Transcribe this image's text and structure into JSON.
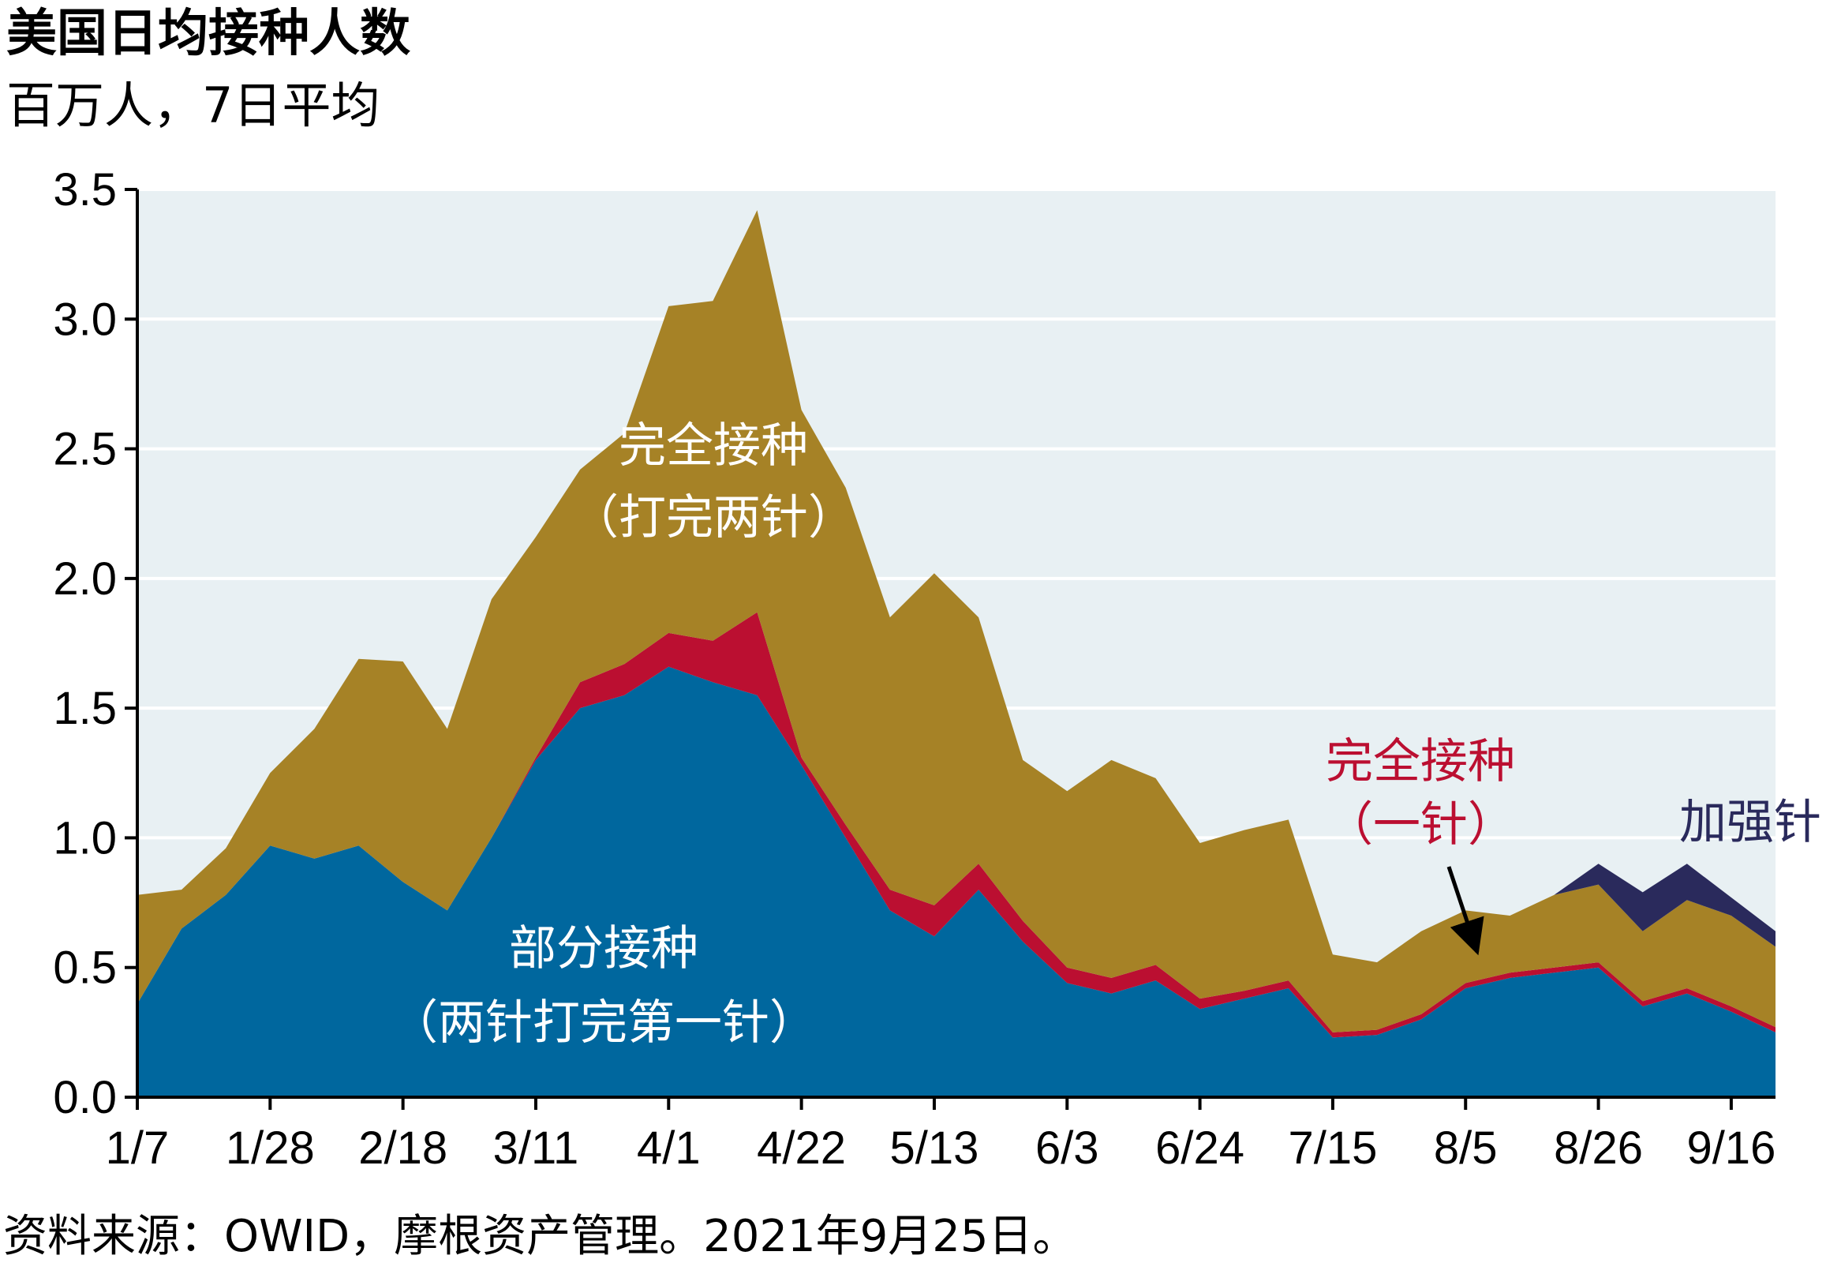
{
  "header": {
    "title": "美国日均接种人数",
    "subtitle": "百万人，7日平均"
  },
  "footer": {
    "source": "资料来源：OWID，摩根资产管理。2021年9月25日。"
  },
  "colors": {
    "plot_background": "#e8f0f3",
    "gridline": "#ffffff",
    "partial": "#00679e",
    "full_one_dose": "#bb0f31",
    "full_two_dose": "#a68226",
    "booster": "#2a2a5c",
    "annotation_white": "#ffffff",
    "annotation_red": "#bb0f31",
    "annotation_navy": "#2a2a5c"
  },
  "chart_data": {
    "type": "area",
    "stacked": true,
    "title": "美国日均接种人数",
    "ylabel": "百万人，7日平均",
    "ylim": [
      0,
      3.5
    ],
    "yticks": [
      "0.0",
      "0.5",
      "1.0",
      "1.5",
      "2.0",
      "2.5",
      "3.0",
      "3.5"
    ],
    "x_tick_labels": [
      "1/7",
      "1/28",
      "2/18",
      "3/11",
      "4/1",
      "4/22",
      "5/13",
      "6/3",
      "6/24",
      "7/15",
      "8/5",
      "8/26",
      "9/16"
    ],
    "x": [
      "1/7",
      "1/14",
      "1/21",
      "1/28",
      "2/4",
      "2/11",
      "2/18",
      "2/25",
      "3/4",
      "3/11",
      "3/18",
      "3/25",
      "4/1",
      "4/8",
      "4/15",
      "4/22",
      "4/29",
      "5/6",
      "5/13",
      "5/20",
      "5/27",
      "6/3",
      "6/10",
      "6/17",
      "6/24",
      "7/1",
      "7/8",
      "7/15",
      "7/22",
      "7/29",
      "8/5",
      "8/12",
      "8/19",
      "8/26",
      "9/2",
      "9/9",
      "9/16",
      "9/23"
    ],
    "grid": true,
    "legend": "none",
    "series": [
      {
        "name": "部分接种（两针打完第一针）",
        "values": [
          0.36,
          0.65,
          0.78,
          0.97,
          0.92,
          0.97,
          0.83,
          0.72,
          1.0,
          1.3,
          1.5,
          1.55,
          1.66,
          1.6,
          1.55,
          1.28,
          1.0,
          0.72,
          0.62,
          0.8,
          0.6,
          0.44,
          0.4,
          0.45,
          0.34,
          0.38,
          0.42,
          0.23,
          0.24,
          0.3,
          0.42,
          0.46,
          0.48,
          0.5,
          0.35,
          0.4,
          0.33,
          0.25
        ]
      },
      {
        "name": "完全接种（一针）",
        "values": [
          0.0,
          0.0,
          0.0,
          0.0,
          0.0,
          0.0,
          0.0,
          0.0,
          0.0,
          0.01,
          0.1,
          0.12,
          0.13,
          0.16,
          0.32,
          0.03,
          0.05,
          0.08,
          0.12,
          0.1,
          0.08,
          0.06,
          0.06,
          0.06,
          0.04,
          0.03,
          0.03,
          0.02,
          0.02,
          0.02,
          0.02,
          0.02,
          0.02,
          0.02,
          0.02,
          0.02,
          0.02,
          0.02
        ]
      },
      {
        "name": "完全接种（打完两针）",
        "values": [
          0.42,
          0.15,
          0.18,
          0.28,
          0.5,
          0.72,
          0.85,
          0.7,
          0.92,
          0.85,
          0.82,
          0.89,
          1.26,
          1.31,
          1.55,
          1.34,
          1.3,
          1.05,
          1.28,
          0.95,
          0.62,
          0.68,
          0.84,
          0.72,
          0.6,
          0.62,
          0.62,
          0.3,
          0.26,
          0.32,
          0.28,
          0.22,
          0.28,
          0.3,
          0.27,
          0.34,
          0.35,
          0.31
        ]
      },
      {
        "name": "加强针",
        "values": [
          0,
          0,
          0,
          0,
          0,
          0,
          0,
          0,
          0,
          0,
          0,
          0,
          0,
          0,
          0,
          0,
          0,
          0,
          0,
          0,
          0,
          0,
          0,
          0,
          0,
          0,
          0,
          0,
          0,
          0,
          0,
          0,
          0,
          0.08,
          0.15,
          0.14,
          0.07,
          0.06
        ]
      }
    ],
    "annotations": {
      "full_two": [
        "完全接种",
        "（打完两针）"
      ],
      "partial": [
        "部分接种",
        "（两针打完第一针）"
      ],
      "full_one": [
        "完全接种",
        "（一针）"
      ],
      "booster": "加强针"
    }
  }
}
